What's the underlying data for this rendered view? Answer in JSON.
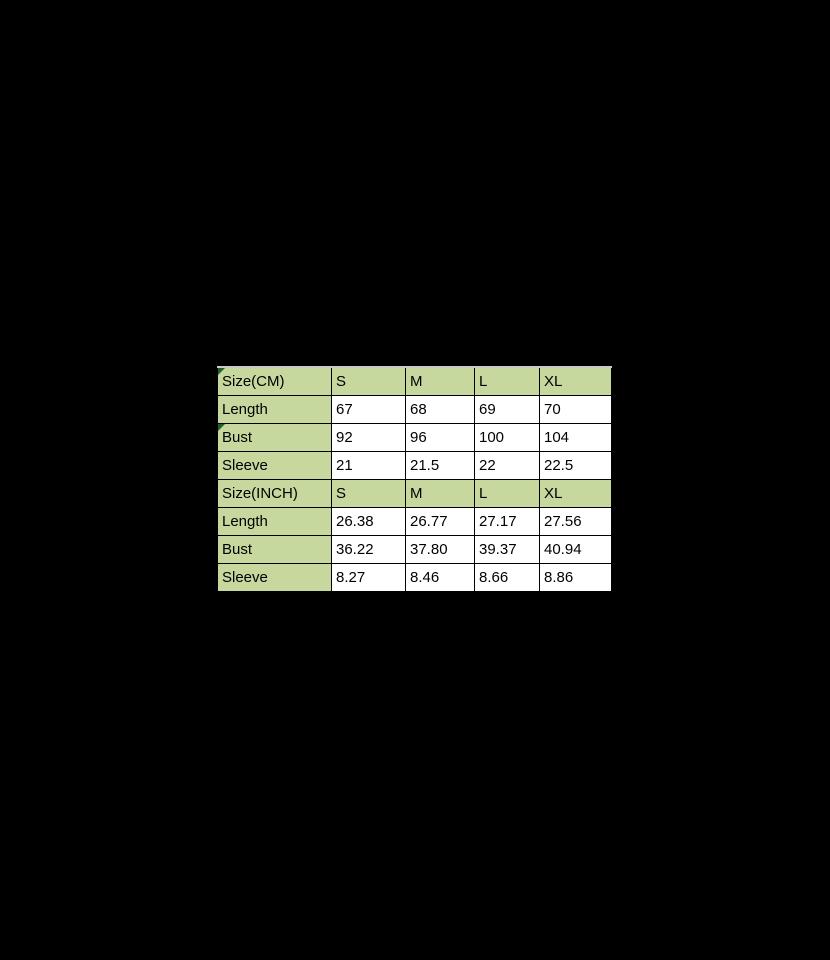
{
  "colors": {
    "background": "#000000",
    "row_header_fill": "#c6d89e",
    "cell_fill": "#ffffff",
    "gridline": "#000000",
    "table_top_border": "#c9ccc4",
    "flag": "#20602c"
  },
  "chart_data": {
    "type": "table",
    "title": "",
    "size_columns": [
      "S",
      "M",
      "L",
      "XL"
    ],
    "rows": [
      {
        "label": "Size(CM)",
        "values": [
          "S",
          "M",
          "L",
          "XL"
        ],
        "header": true,
        "corner_flag": true
      },
      {
        "label": "Length",
        "values": [
          "67",
          "68",
          "69",
          "70"
        ],
        "header": false,
        "corner_flag": false
      },
      {
        "label": "Bust",
        "values": [
          "92",
          "96",
          "100",
          "104"
        ],
        "header": false,
        "corner_flag": true
      },
      {
        "label": "Sleeve",
        "values": [
          "21",
          "21.5",
          "22",
          "22.5"
        ],
        "header": false,
        "corner_flag": false
      },
      {
        "label": "Size(INCH)",
        "values": [
          "S",
          "M",
          "L",
          "XL"
        ],
        "header": true,
        "corner_flag": false
      },
      {
        "label": "Length",
        "values": [
          "26.38",
          "26.77",
          "27.17",
          "27.56"
        ],
        "header": false,
        "corner_flag": false
      },
      {
        "label": "Bust",
        "values": [
          "36.22",
          "37.80",
          "39.37",
          "40.94"
        ],
        "header": false,
        "corner_flag": false
      },
      {
        "label": "Sleeve",
        "values": [
          "8.27",
          "8.46",
          "8.66",
          "8.86"
        ],
        "header": false,
        "corner_flag": false
      }
    ]
  }
}
